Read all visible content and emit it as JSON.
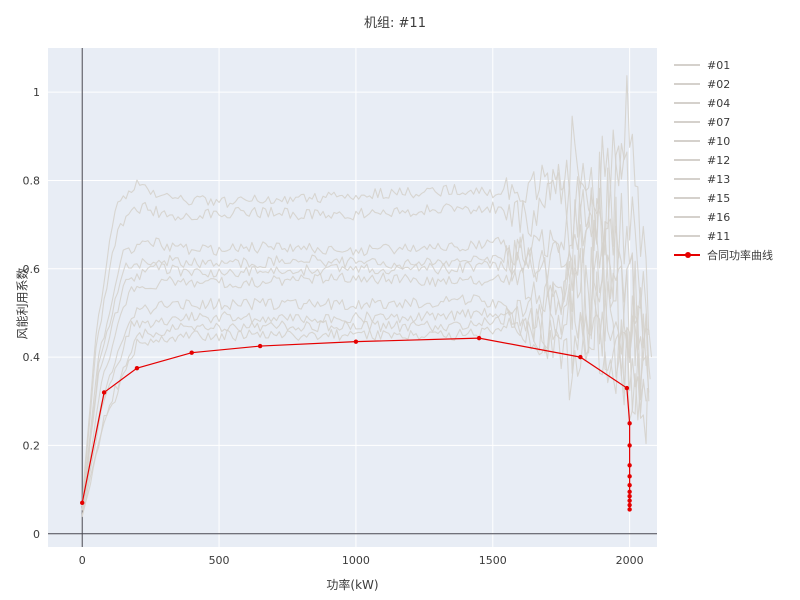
{
  "chart_data": {
    "type": "line",
    "title": "机组: #11",
    "xlabel": "功率(kW)",
    "ylabel": "风能利用系数",
    "xlim": [
      -125,
      2100
    ],
    "ylim": [
      -0.03,
      1.1
    ],
    "xticks": [
      0,
      500,
      1000,
      1500,
      2000
    ],
    "xtick_labels": [
      "0",
      "500",
      "1000",
      "1500",
      "2000"
    ],
    "yticks": [
      0,
      0.2,
      0.4,
      0.6,
      0.8,
      1
    ],
    "ytick_labels": [
      "0",
      "0.2",
      "0.4",
      "0.6",
      "0.8",
      "1"
    ],
    "grid": true,
    "legend_position": "outside-right",
    "style": {
      "plot_bg": "#e8edf5",
      "grid_color": "#ffffff",
      "zero_line_color": "#45454f",
      "series_color": "#d5d1cc",
      "contract_color": "#e50000",
      "text_color": "#3b3b3b"
    },
    "series": [
      {
        "name": "#01",
        "anchors": [
          [
            0,
            0.07
          ],
          [
            50,
            0.45
          ],
          [
            120,
            0.74
          ],
          [
            200,
            0.79
          ],
          [
            300,
            0.76
          ],
          [
            500,
            0.75
          ],
          [
            800,
            0.76
          ],
          [
            1100,
            0.77
          ],
          [
            1400,
            0.78
          ],
          [
            1550,
            0.77
          ],
          [
            1700,
            0.8
          ],
          [
            1850,
            0.7
          ],
          [
            1950,
            0.92
          ],
          [
            2040,
            0.55
          ],
          [
            2080,
            0.4
          ]
        ]
      },
      {
        "name": "#02",
        "anchors": [
          [
            0,
            0.06
          ],
          [
            50,
            0.42
          ],
          [
            130,
            0.7
          ],
          [
            220,
            0.74
          ],
          [
            320,
            0.72
          ],
          [
            600,
            0.73
          ],
          [
            900,
            0.72
          ],
          [
            1200,
            0.73
          ],
          [
            1500,
            0.74
          ],
          [
            1650,
            0.7
          ],
          [
            1800,
            0.86
          ],
          [
            1900,
            0.6
          ],
          [
            2000,
            0.95
          ],
          [
            2070,
            0.45
          ]
        ]
      },
      {
        "name": "#04",
        "anchors": [
          [
            0,
            0.06
          ],
          [
            60,
            0.4
          ],
          [
            150,
            0.63
          ],
          [
            250,
            0.66
          ],
          [
            400,
            0.64
          ],
          [
            700,
            0.65
          ],
          [
            1000,
            0.64
          ],
          [
            1300,
            0.65
          ],
          [
            1550,
            0.66
          ],
          [
            1700,
            0.6
          ],
          [
            1850,
            0.76
          ],
          [
            1950,
            0.55
          ],
          [
            2020,
            0.66
          ],
          [
            2075,
            0.35
          ]
        ]
      },
      {
        "name": "#07",
        "anchors": [
          [
            0,
            0.05
          ],
          [
            60,
            0.38
          ],
          [
            150,
            0.6
          ],
          [
            260,
            0.62
          ],
          [
            500,
            0.61
          ],
          [
            800,
            0.62
          ],
          [
            1100,
            0.61
          ],
          [
            1400,
            0.62
          ],
          [
            1600,
            0.63
          ],
          [
            1750,
            0.55
          ],
          [
            1880,
            0.72
          ],
          [
            1980,
            0.5
          ],
          [
            2060,
            0.38
          ]
        ]
      },
      {
        "name": "#10",
        "anchors": [
          [
            0,
            0.05
          ],
          [
            60,
            0.36
          ],
          [
            160,
            0.58
          ],
          [
            280,
            0.6
          ],
          [
            500,
            0.59
          ],
          [
            900,
            0.6
          ],
          [
            1300,
            0.6
          ],
          [
            1550,
            0.61
          ],
          [
            1700,
            0.66
          ],
          [
            1850,
            0.5
          ],
          [
            1950,
            0.76
          ],
          [
            2050,
            0.42
          ]
        ]
      },
      {
        "name": "#12",
        "anchors": [
          [
            0,
            0.05
          ],
          [
            70,
            0.34
          ],
          [
            170,
            0.55
          ],
          [
            300,
            0.57
          ],
          [
            600,
            0.57
          ],
          [
            1000,
            0.58
          ],
          [
            1400,
            0.57
          ],
          [
            1600,
            0.58
          ],
          [
            1750,
            0.52
          ],
          [
            1880,
            0.66
          ],
          [
            1980,
            0.45
          ],
          [
            2065,
            0.33
          ]
        ]
      },
      {
        "name": "#13",
        "anchors": [
          [
            0,
            0.05
          ],
          [
            70,
            0.3
          ],
          [
            180,
            0.5
          ],
          [
            320,
            0.52
          ],
          [
            700,
            0.52
          ],
          [
            1100,
            0.52
          ],
          [
            1450,
            0.53
          ],
          [
            1650,
            0.5
          ],
          [
            1800,
            0.59
          ],
          [
            1930,
            0.42
          ],
          [
            2020,
            0.52
          ],
          [
            2070,
            0.32
          ]
        ]
      },
      {
        "name": "#15",
        "anchors": [
          [
            0,
            0.04
          ],
          [
            70,
            0.28
          ],
          [
            180,
            0.47
          ],
          [
            350,
            0.49
          ],
          [
            800,
            0.49
          ],
          [
            1200,
            0.49
          ],
          [
            1500,
            0.5
          ],
          [
            1700,
            0.46
          ],
          [
            1850,
            0.56
          ],
          [
            1970,
            0.38
          ],
          [
            2060,
            0.3
          ]
        ]
      },
      {
        "name": "#16",
        "anchors": [
          [
            0,
            0.04
          ],
          [
            80,
            0.26
          ],
          [
            200,
            0.45
          ],
          [
            400,
            0.47
          ],
          [
            900,
            0.47
          ],
          [
            1300,
            0.47
          ],
          [
            1550,
            0.48
          ],
          [
            1750,
            0.43
          ],
          [
            1890,
            0.53
          ],
          [
            1990,
            0.36
          ],
          [
            2070,
            0.3
          ]
        ]
      },
      {
        "name": "#11",
        "anchors": [
          [
            0,
            0.04
          ],
          [
            80,
            0.25
          ],
          [
            200,
            0.43
          ],
          [
            450,
            0.45
          ],
          [
            900,
            0.45
          ],
          [
            1350,
            0.45
          ],
          [
            1600,
            0.46
          ],
          [
            1790,
            0.4
          ],
          [
            1940,
            0.51
          ],
          [
            2050,
            0.34
          ]
        ]
      }
    ],
    "contract": {
      "name": "合同功率曲线",
      "points": [
        [
          0,
          0.07
        ],
        [
          80,
          0.32
        ],
        [
          200,
          0.375
        ],
        [
          400,
          0.41
        ],
        [
          650,
          0.425
        ],
        [
          1000,
          0.435
        ],
        [
          1450,
          0.443
        ],
        [
          1820,
          0.4
        ],
        [
          1990,
          0.33
        ],
        [
          2000,
          0.25
        ],
        [
          2000,
          0.2
        ],
        [
          2000,
          0.155
        ],
        [
          2000,
          0.13
        ],
        [
          2000,
          0.11
        ],
        [
          2000,
          0.095
        ],
        [
          2000,
          0.085
        ],
        [
          2000,
          0.075
        ],
        [
          2000,
          0.065
        ],
        [
          2000,
          0.055
        ]
      ]
    }
  }
}
